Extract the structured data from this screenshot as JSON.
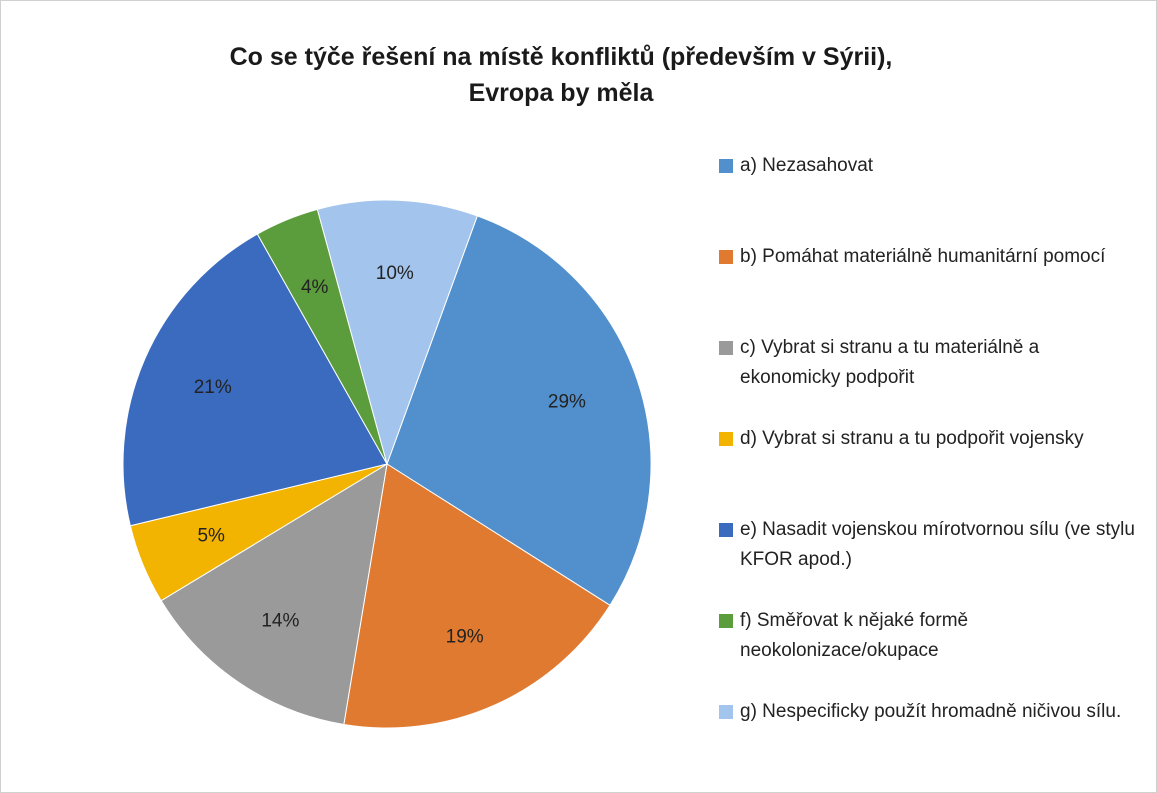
{
  "chart_data": {
    "type": "pie",
    "title": "Co se týče řešení na místě konfliktů (především v Sýrii), Evropa by měla",
    "categories": [
      "a) Nezasahovat",
      "b) Pomáhat materiálně humanitární pomocí",
      "c) Vybrat si stranu a tu materiálně a ekonomicky podpořit",
      "d) Vybrat si stranu a tu podpořit vojensky",
      "e) Nasadit vojenskou mírotvornou sílu (ve stylu KFOR apod.)",
      "f) Směřovat k nějaké formě neokolonizace/okupace",
      "g) Nespecificky použít hromadně ničivou sílu."
    ],
    "values": [
      29,
      19,
      14,
      5,
      21,
      4,
      10
    ],
    "value_labels": [
      "29%",
      "19%",
      "14%",
      "5%",
      "21%",
      "4%",
      "10%"
    ],
    "colors": [
      "#5190cc",
      "#e07a30",
      "#9a9a9a",
      "#f2b400",
      "#3a6bbf",
      "#5b9c3c",
      "#a3c4ec"
    ],
    "legend": "right"
  }
}
